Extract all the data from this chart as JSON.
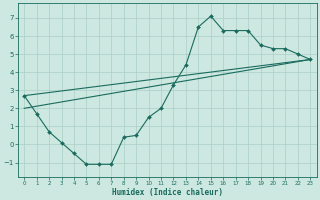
{
  "xlabel": "Humidex (Indice chaleur)",
  "xlim": [
    -0.5,
    23.5
  ],
  "ylim": [
    -1.8,
    7.8
  ],
  "xticks": [
    0,
    1,
    2,
    3,
    4,
    5,
    6,
    7,
    8,
    9,
    10,
    11,
    12,
    13,
    14,
    15,
    16,
    17,
    18,
    19,
    20,
    21,
    22,
    23
  ],
  "yticks": [
    -1,
    0,
    1,
    2,
    3,
    4,
    5,
    6,
    7
  ],
  "background_color": "#cce8e0",
  "grid_color": "#aacfc7",
  "line_color": "#1a6b5e",
  "line1_x": [
    0,
    1,
    2,
    3,
    4,
    5,
    6,
    7,
    8,
    9,
    10,
    11,
    12,
    13,
    14,
    15,
    16,
    17,
    18,
    19,
    20,
    21,
    22,
    23
  ],
  "line1_y": [
    2.7,
    1.7,
    0.7,
    0.1,
    -0.5,
    -1.1,
    -1.1,
    -1.1,
    0.4,
    0.5,
    1.5,
    2.0,
    3.3,
    4.4,
    6.5,
    7.1,
    6.3,
    6.3,
    6.3,
    5.5,
    5.3,
    5.3,
    5.0,
    4.7
  ],
  "line2_x": [
    0,
    23
  ],
  "line2_y": [
    2.0,
    4.7
  ],
  "line3_x": [
    0,
    23
  ],
  "line3_y": [
    2.7,
    4.7
  ]
}
